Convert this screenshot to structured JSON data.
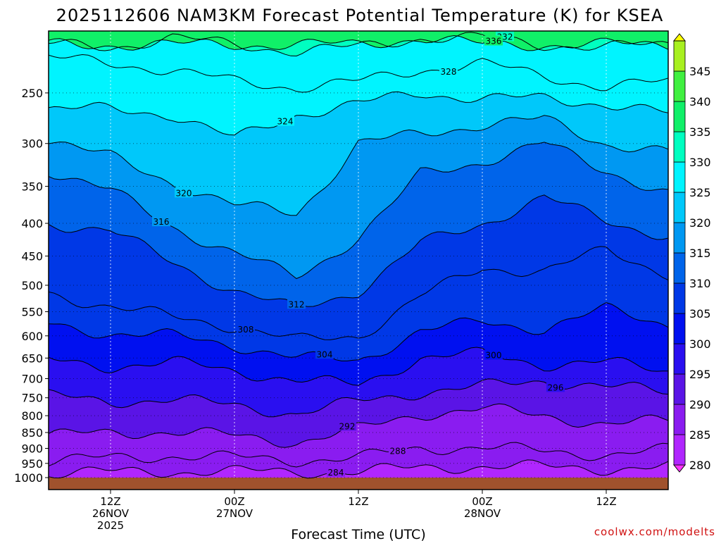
{
  "header": {
    "title": "2025112606 NAM3KM Forecast Potential Temperature (K) for KSEA"
  },
  "footer": {
    "credit": "coolwx.com/modelts"
  },
  "chart_data": {
    "type": "heatmap",
    "title": "2025112606 NAM3KM Forecast Potential Temperature (K) for KSEA",
    "xlabel": "Forecast Time (UTC)",
    "ylabel": "",
    "y_axis": {
      "scale": "log-pressure",
      "unit": "hPa",
      "reversed": true,
      "ticks": [
        250,
        300,
        350,
        400,
        450,
        500,
        550,
        600,
        650,
        700,
        750,
        800,
        850,
        900,
        950,
        1000
      ]
    },
    "x_axis": {
      "unit": "forecast hour",
      "range": [
        0,
        60
      ],
      "ticks": [
        {
          "hour": 6,
          "lines": [
            "12Z",
            "26NOV",
            "2025"
          ]
        },
        {
          "hour": 18,
          "lines": [
            "00Z",
            "27NOV"
          ]
        },
        {
          "hour": 30,
          "lines": [
            "12Z"
          ]
        },
        {
          "hour": 42,
          "lines": [
            "00Z",
            "28NOV"
          ]
        },
        {
          "hour": 54,
          "lines": [
            "12Z"
          ]
        }
      ]
    },
    "grid": true,
    "colorbar": {
      "position": "right",
      "levels": [
        280,
        285,
        290,
        295,
        300,
        305,
        310,
        315,
        320,
        325,
        330,
        335,
        340,
        345
      ],
      "colors": [
        "#ff33ff",
        "#b026ff",
        "#8a1cf0",
        "#5a14e6",
        "#2a0ff0",
        "#0010f0",
        "#0038e6",
        "#0064ea",
        "#0098f2",
        "#00c8fa",
        "#00f4ff",
        "#00ffc0",
        "#10f068",
        "#40f040",
        "#a8f020",
        "#ffff00"
      ]
    },
    "hours": [
      0,
      6,
      12,
      18,
      24,
      30,
      36,
      42,
      48,
      54,
      60
    ],
    "isentropes": [
      {
        "theta": 284,
        "pressure": [
          985,
          980,
          978,
          978,
          980,
          978,
          965,
          960,
          962,
          968,
          962
        ],
        "label_hour": 28
      },
      {
        "theta": 288,
        "pressure": [
          945,
          930,
          925,
          930,
          940,
          930,
          900,
          895,
          910,
          920,
          905
        ],
        "label_hour": 34
      },
      {
        "theta": 292,
        "pressure": [
          860,
          850,
          848,
          860,
          880,
          840,
          795,
          780,
          800,
          825,
          815
        ],
        "label_hour": 29
      },
      {
        "theta": 296,
        "pressure": [
          745,
          760,
          755,
          770,
          795,
          760,
          735,
          720,
          705,
          720,
          735
        ],
        "label_hour": 49
      },
      {
        "theta": 300,
        "pressure": [
          655,
          670,
          660,
          680,
          705,
          715,
          650,
          640,
          665,
          660,
          680
        ],
        "label_hour": 43
      },
      {
        "theta": 304,
        "pressure": [
          575,
          595,
          600,
          620,
          650,
          655,
          590,
          570,
          585,
          545,
          575
        ],
        "label_hour": 27
      },
      {
        "theta": 308,
        "pressure": [
          515,
          540,
          560,
          580,
          610,
          600,
          520,
          470,
          475,
          440,
          480
        ],
        "label_hour": 19
      },
      {
        "theta": 312,
        "pressure": [
          400,
          410,
          460,
          510,
          545,
          510,
          430,
          400,
          365,
          395,
          420
        ],
        "label_hour": 24
      },
      {
        "theta": 316,
        "pressure": [
          330,
          355,
          405,
          445,
          485,
          420,
          335,
          320,
          300,
          330,
          360
        ],
        "label_hour": 11
      },
      {
        "theta": 320,
        "pressure": [
          295,
          315,
          345,
          375,
          385,
          300,
          290,
          280,
          275,
          300,
          310
        ],
        "label_hour": 13
      },
      {
        "theta": 324,
        "pressure": [
          265,
          265,
          270,
          295,
          270,
          260,
          250,
          255,
          255,
          260,
          270
        ],
        "label_hour": 23
      },
      {
        "theta": 328,
        "pressure": [
          220,
          225,
          230,
          240,
          245,
          240,
          230,
          225,
          235,
          245,
          240
        ],
        "label_hour": 39
      },
      {
        "theta": 332,
        "pressure": [
          210,
          212,
          205,
          210,
          215,
          212,
          205,
          205,
          210,
          212,
          210
        ],
        "label_hour": 44
      },
      {
        "theta": 336,
        "pressure": [
          210,
          210,
          210,
          210,
          210,
          210,
          205,
          210,
          210,
          210,
          210
        ],
        "label_hour": 43
      }
    ],
    "contour_labels": [
      304,
      308,
      312,
      316,
      320,
      324,
      328,
      332,
      336,
      284,
      288,
      292,
      296,
      300
    ]
  }
}
